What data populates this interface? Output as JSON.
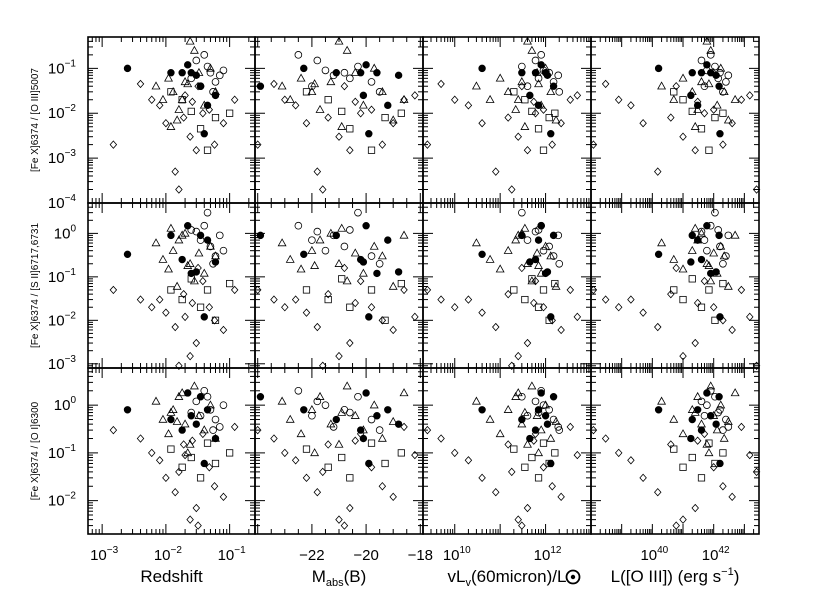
{
  "chart_data": {
    "type": "scatter",
    "grid": false,
    "panels_layout": {
      "rows": 3,
      "cols": 4
    },
    "columns": [
      {
        "xlabel": "Redshift",
        "xscale": "log",
        "xlim": [
          0.0006,
          0.25
        ],
        "ticks": [
          {
            "base": "10",
            "exp": "−3",
            "value": 0.001
          },
          {
            "base": "10",
            "exp": "−2",
            "value": 0.01
          },
          {
            "base": "10",
            "exp": "−1",
            "value": 0.1
          }
        ]
      },
      {
        "xlabel": "M",
        "xlabel_sub": "abs",
        "xlabel_rest": "(B)",
        "xscale": "linear",
        "xlim": [
          -24.1,
          -17.9
        ],
        "ticks": [
          {
            "text": "−22",
            "value": -22
          },
          {
            "text": "−20",
            "value": -20
          },
          {
            "text": "−18",
            "value": -18
          }
        ]
      },
      {
        "xlabel": "vL",
        "xlabel_sub": "v",
        "xlabel_rest": "(60micron)/L",
        "xlabel_symbol": "sun-symbol",
        "xscale": "log",
        "xlim": [
          2000000000.0,
          10000000000000.0
        ],
        "ticks": [
          {
            "base": "10",
            "exp": "10",
            "value": 10000000000.0
          },
          {
            "base": "10",
            "exp": "12",
            "value": 1000000000000.0
          }
        ]
      },
      {
        "xlabel": "L([O III])  (erg s",
        "xlabel_sup": "−1",
        "xlabel_rest": ")",
        "xscale": "log",
        "xlim": [
          1e+38,
          3e+43
        ],
        "ticks": [
          {
            "base": "10",
            "exp": "40",
            "value": 1e+40
          },
          {
            "base": "10",
            "exp": "42",
            "value": 1e+42
          }
        ]
      }
    ],
    "rows": [
      {
        "ylabel": "[Fe X]6374 / [O III]5007",
        "yscale": "log",
        "ylim": [
          0.0001,
          0.5
        ],
        "ticks": [
          {
            "base": "10",
            "exp": "−1",
            "value": 0.1
          },
          {
            "base": "10",
            "exp": "−2",
            "value": 0.01
          },
          {
            "base": "10",
            "exp": "−3",
            "value": 0.001
          },
          {
            "base": "10",
            "exp": "−4",
            "value": 0.0001
          }
        ]
      },
      {
        "ylabel": "[Fe X]6374 / [S II]6717,6731",
        "yscale": "log",
        "ylim": [
          0.0008,
          5
        ],
        "ticks": [
          {
            "base": "10",
            "exp": "0",
            "value": 1
          },
          {
            "base": "10",
            "exp": "−1",
            "value": 0.1
          },
          {
            "base": "10",
            "exp": "−2",
            "value": 0.01
          },
          {
            "base": "10",
            "exp": "−3",
            "value": 0.001
          }
        ]
      },
      {
        "ylabel": "[Fe X]6374 / [O I]6300",
        "yscale": "log",
        "ylim": [
          0.002,
          6
        ],
        "ticks": [
          {
            "base": "10",
            "exp": "0",
            "value": 1
          },
          {
            "base": "10",
            "exp": "−1",
            "value": 0.1
          },
          {
            "base": "10",
            "exp": "−2",
            "value": 0.01
          }
        ]
      }
    ],
    "series": [
      {
        "marker": "filled-circle",
        "x": [
          [
            0.0025,
            0.012,
            0.018,
            0.022,
            0.025,
            0.03,
            0.035,
            0.045,
            0.06,
            0.04
          ],
          [
            -22.3,
            -21.1,
            -20.2,
            -20.0,
            -19.6,
            -18.8,
            -23.9,
            -19.2,
            -20.1,
            -19.9
          ],
          [
            40000000000.0,
            300000000000.0,
            600000000000.0,
            800000000000.0,
            1000000000000.0,
            1100000000000.0,
            1500000000000.0,
            700000000000.0,
            450000000000.0,
            1300000000000.0
          ],
          [
            1.6e+40,
            2e+41,
            4e+41,
            6e+41,
            8e+41,
            1.2e+42,
            1.5e+42,
            3e+41,
            1.8e+41,
            1.6e+42
          ]
        ],
        "y": [
          [
            0.1,
            0.08,
            0.08,
            0.12,
            0.08,
            0.07,
            0.04,
            0.015,
            0.025,
            0.0035
          ],
          [
            0.33,
            0.9,
            0.25,
            1.5,
            0.12,
            0.13,
            0.9,
            0.7,
            0.22,
            0.012
          ],
          [
            0.8,
            0.5,
            0.3,
            1.8,
            0.6,
            0.4,
            1.5,
            0.8,
            0.2,
            0.06
          ]
        ]
      },
      {
        "marker": "open-circle",
        "x": [
          [
            0.03,
            0.04,
            0.05,
            0.06,
            0.07,
            0.045,
            0.035,
            0.055,
            0.08,
            0.025
          ],
          [
            -21.8,
            -22.5,
            -20.8,
            -19.8,
            -21.2,
            -20.3,
            -22.0,
            -19.5,
            -21.5,
            -20.6
          ],
          [
            600000000000.0,
            800000000000.0,
            1200000000000.0,
            1500000000000.0,
            1900000000000.0,
            300000000000.0,
            400000000000.0,
            2000000000000.0,
            900000000000.0,
            700000000000.0
          ],
          [
            4e+41,
            8e+41,
            1.6e+42,
            2.5e+42,
            3e+42,
            1.1e+42,
            5e+41,
            2e+42,
            6e+41,
            1.4e+42
          ]
        ],
        "y": [
          [
            0.15,
            0.2,
            0.08,
            0.05,
            0.07,
            0.11,
            0.04,
            0.03,
            0.09,
            0.06
          ],
          [
            1.1,
            1.5,
            0.5,
            0.3,
            0.9,
            3.0,
            0.7,
            0.2,
            0.4,
            1.2
          ],
          [
            1.2,
            2.0,
            0.8,
            0.5,
            0.35,
            1.5,
            0.6,
            0.3,
            1.0,
            0.7
          ]
        ]
      },
      {
        "marker": "open-triangle",
        "x": [
          [
            0.007,
            0.009,
            0.011,
            0.013,
            0.016,
            0.02,
            0.024,
            0.028,
            0.033,
            0.04,
            0.05,
            0.06,
            0.015,
            0.018,
            0.022,
            0.012
          ],
          [
            -23.1,
            -22.8,
            -22.4,
            -22.0,
            -21.7,
            -21.3,
            -21.0,
            -20.7,
            -20.4,
            -20.1,
            -19.7,
            -19.4,
            -19.0,
            -18.6,
            -21.9,
            -20.9
          ],
          [
            30000000000.0,
            60000000000.0,
            100000000000.0,
            150000000000.0,
            220000000000.0,
            300000000000.0,
            400000000000.0,
            500000000000.0,
            650000000000.0,
            800000000000.0,
            1000000000000.0,
            1300000000000.0,
            1700000000000.0,
            250000000000.0,
            700000000000.0,
            350000000000.0
          ],
          [
            2e+40,
            5e+40,
            1e+41,
            2e+41,
            3e+41,
            4e+41,
            6e+41,
            8e+41,
            1e+42,
            1.3e+42,
            1.7e+42,
            2.2e+42,
            3e+42,
            5e+42,
            7e+41,
            2.5e+41
          ]
        ],
        "y": [
          [
            0.04,
            0.02,
            0.06,
            0.03,
            0.012,
            0.05,
            0.4,
            0.25,
            0.08,
            0.015,
            0.1,
            0.03,
            0.007,
            0.02,
            0.045,
            0.005
          ],
          [
            0.6,
            0.25,
            0.15,
            0.4,
            0.7,
            1.0,
            0.2,
            0.08,
            0.35,
            0.12,
            0.5,
            0.3,
            0.06,
            0.9,
            0.18,
            1.3
          ],
          [
            1.2,
            0.5,
            0.25,
            0.8,
            1.5,
            0.4,
            0.15,
            2.5,
            0.6,
            0.3,
            1.0,
            0.2,
            0.45,
            1.8,
            0.1,
            0.7
          ]
        ]
      },
      {
        "marker": "open-square",
        "x": [
          [
            0.012,
            0.018,
            0.025,
            0.035,
            0.045,
            0.06,
            0.1
          ],
          [
            -22.2,
            -21.4,
            -20.9,
            -20.6,
            -19.8,
            -19.3,
            -18.7
          ],
          [
            200000000000.0,
            350000000000.0,
            500000000000.0,
            700000000000.0,
            900000000000.0,
            1200000000000.0,
            1600000000000.0
          ],
          [
            5e+40,
            1e+41,
            2e+41,
            4e+41,
            7e+41,
            1.1e+42,
            2e+42
          ]
        ],
        "y": [
          [
            0.03,
            0.02,
            0.011,
            0.0045,
            0.0015,
            0.008,
            0.01
          ],
          [
            0.05,
            0.03,
            0.09,
            0.02,
            0.05,
            0.01,
            0.07
          ],
          [
            0.12,
            0.05,
            0.08,
            0.03,
            0.16,
            0.06,
            0.1
          ]
        ]
      },
      {
        "marker": "open-diamond",
        "x": [
          [
            0.0015,
            0.004,
            0.006,
            0.008,
            0.01,
            0.014,
            0.019,
            0.024,
            0.03,
            0.038,
            0.048,
            0.058,
            0.08,
            0.12,
            0.02,
            0.016,
            0.032,
            0.026
          ],
          [
            -24.0,
            -23.4,
            -23.0,
            -22.6,
            -22.2,
            -21.8,
            -21.4,
            -21.0,
            -20.6,
            -20.2,
            -19.8,
            -19.4,
            -19.0,
            -18.6,
            -18.2,
            -21.6,
            -20.8,
            -20.4
          ],
          [
            2500000000.0,
            5000000000.0,
            10000000000.0,
            20000000000.0,
            40000000000.0,
            80000000000.0,
            150000000000.0,
            250000000000.0,
            400000000000.0,
            600000000000.0,
            900000000000.0,
            1400000000000.0,
            2200000000000.0,
            3500000000000.0,
            5000000000000.0,
            180000000000.0,
            300000000000.0,
            550000000000.0
          ],
          [
            1.2e+38,
            3e+38,
            8e+38,
            2e+39,
            5e+39,
            1.5e+40,
            4e+40,
            1e+41,
            2.5e+41,
            5e+41,
            1e+42,
            2e+42,
            4e+42,
            8e+42,
            1.5e+43,
            2.5e+43,
            6e+40,
            3e+41
          ]
        ],
        "y": [
          [
            0.002,
            0.045,
            0.02,
            0.015,
            0.006,
            0.0005,
            0.008,
            0.003,
            0.0015,
            0.01,
            0.012,
            0.002,
            0.006,
            0.02,
            0.025,
            0.0002,
            0.04,
            0.018
          ],
          [
            0.05,
            0.03,
            0.02,
            0.03,
            0.015,
            0.007,
            0.04,
            0.0015,
            0.003,
            0.08,
            0.02,
            0.01,
            0.006,
            0.05,
            0.012,
            0.0009,
            0.16,
            0.025
          ],
          [
            0.3,
            0.2,
            0.1,
            0.07,
            0.03,
            0.015,
            0.15,
            0.004,
            0.007,
            0.25,
            0.05,
            0.02,
            0.012,
            0.35,
            0.09,
            0.04,
            0.003,
            0.18
          ]
        ]
      }
    ]
  }
}
